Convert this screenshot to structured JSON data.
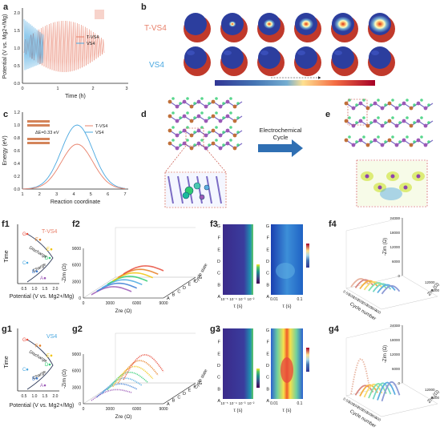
{
  "panels": {
    "a": {
      "label": "a",
      "xlabel": "Time (h)",
      "ylabel": "Potential (V vs. Mg2+/Mg)",
      "xticks": [
        "0",
        "1",
        "2",
        "3"
      ],
      "yticks": [
        "0.0",
        "0.5",
        "1.0",
        "1.5",
        "2.0"
      ],
      "legend": [
        "T-VS4",
        "VS4"
      ],
      "colors": {
        "t_vs4": "#e8806a",
        "vs4": "#4aa8e0"
      }
    },
    "b": {
      "label": "b",
      "row1": "T-VS4",
      "row2": "VS4"
    },
    "c": {
      "label": "c",
      "xlabel": "Reaction coordinate",
      "ylabel": "Energy (eV)",
      "xticks": [
        "1",
        "2",
        "3",
        "4",
        "5",
        "6",
        "7"
      ],
      "yticks": [
        "0.0",
        "0.2",
        "0.4",
        "0.6",
        "0.8",
        "1.0",
        "1.2"
      ],
      "annotation": "ΔE=0.33 eV",
      "legend": [
        "T-VS4",
        "VS4"
      ]
    },
    "d": {
      "label": "d"
    },
    "e": {
      "label": "e",
      "arrow_text_1": "Electrochemical",
      "arrow_text_2": "Cycle"
    },
    "f1": {
      "label": "f1",
      "tag": "T-VS4",
      "ylabel": "Time",
      "xlabel": "Potential (V vs. Mg2+/Mg)",
      "xticks": [
        "0.5",
        "1.0",
        "1.5",
        "2.0"
      ],
      "points": [
        "G",
        "F",
        "E",
        "D",
        "C",
        "B",
        "A"
      ],
      "discharge": "Discharge",
      "charge": "Charge"
    },
    "f2": {
      "label": "f2",
      "xlabel": "Zre (Ω)",
      "ylabel": "-Zim (Ω)",
      "xticks": [
        "0",
        "3000",
        "6000",
        "9000"
      ],
      "yticks": [
        "0",
        "3000",
        "6000",
        "9000"
      ],
      "state_label": "Cycle state",
      "states": [
        "A",
        "B",
        "C",
        "D",
        "E",
        "F",
        "G"
      ]
    },
    "f3": {
      "label": "f3",
      "xlabel": "τ (s)",
      "left_xticks": [
        "10⁻⁵",
        "10⁻⁴",
        "10⁻³",
        "10⁻²"
      ],
      "right_xticks": [
        "0.01",
        "0.1"
      ],
      "rows": [
        "G",
        "F",
        "E",
        "D",
        "C",
        "B",
        "A"
      ]
    },
    "f4": {
      "label": "f4",
      "zlabel": "-Zim (Ω)",
      "ylabel": "Cycle number",
      "xlabel": "Zre (Ω)",
      "zticks": [
        "0",
        "6000",
        "12000",
        "18000",
        "24000"
      ],
      "cycles": [
        "0",
        "50",
        "100",
        "150",
        "200",
        "250",
        "300",
        "350",
        "400"
      ],
      "xticks": [
        "12000",
        "6000"
      ]
    },
    "g1": {
      "label": "g1",
      "tag": "VS4",
      "ylabel": "Time",
      "xlabel": "Potential (V vs. Mg2+/Mg)",
      "xticks": [
        "0.5",
        "1.0",
        "1.5",
        "2.0"
      ],
      "points": [
        "G",
        "F",
        "E",
        "D",
        "C",
        "B",
        "A"
      ],
      "discharge": "Discharge",
      "charge": "Charge"
    },
    "g2": {
      "label": "g2",
      "xlabel": "Zre (Ω)",
      "ylabel": "-Zim (Ω)",
      "xticks": [
        "0",
        "3000",
        "6000",
        "9000"
      ],
      "yticks": [
        "0",
        "3000",
        "6000",
        "9000"
      ],
      "state_label": "Cycle state",
      "states": [
        "A",
        "B",
        "C",
        "D",
        "E",
        "F",
        "G"
      ]
    },
    "g3": {
      "label": "g3",
      "xlabel": "τ (s)",
      "left_xticks": [
        "10⁻⁵",
        "10⁻⁴",
        "10⁻³",
        "10⁻²"
      ],
      "right_xticks": [
        "0.01",
        "0.1"
      ],
      "rows": [
        "G",
        "F",
        "E",
        "D",
        "C",
        "B",
        "A"
      ]
    },
    "g4": {
      "label": "g4",
      "zlabel": "-Zim (Ω)",
      "ylabel": "Cycle number",
      "xlabel": "Zre (Ω)",
      "zticks": [
        "0",
        "6000",
        "12000",
        "18000",
        "24000"
      ],
      "cycles": [
        "0",
        "50",
        "100",
        "150",
        "200",
        "250",
        "300",
        "350",
        "400"
      ],
      "xticks": [
        "12000",
        "6000"
      ]
    }
  },
  "colors": {
    "orange": "#e8806a",
    "blue": "#4aa8e0",
    "red": "#c0392b",
    "series": [
      "#9b59b6",
      "#3a7bd5",
      "#4aa8e0",
      "#2ecc71",
      "#f1c40f",
      "#e67e22",
      "#e74c3c"
    ]
  }
}
